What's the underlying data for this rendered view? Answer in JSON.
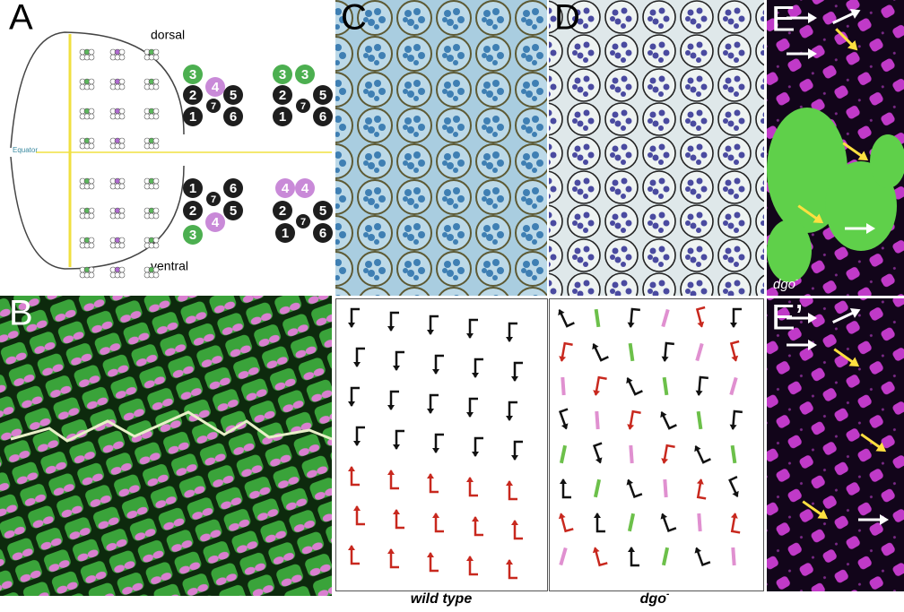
{
  "panels": {
    "A": {
      "label": "A",
      "dorsal": "dorsal",
      "ventral": "ventral",
      "equator": "Equator",
      "clusters": [
        [
          "3",
          "4",
          "2",
          "7",
          "5",
          "1",
          "6"
        ],
        [
          "3",
          "3",
          "2",
          "7",
          "5",
          "1",
          "6"
        ],
        [
          "1",
          "7",
          "6",
          "2",
          "5",
          "4",
          "3"
        ],
        [
          "4",
          "4",
          "2",
          "7",
          "5",
          "1",
          "6"
        ]
      ]
    },
    "B": {
      "label": "B"
    },
    "C": {
      "label": "C",
      "caption": "wild type"
    },
    "D": {
      "label": "D",
      "caption": {
        "text": "dgo",
        "sup": "-"
      }
    },
    "E": {
      "label": "E",
      "note": {
        "text": "dgo",
        "sup": "-"
      }
    },
    "E2": {
      "label": "E’"
    }
  }
}
